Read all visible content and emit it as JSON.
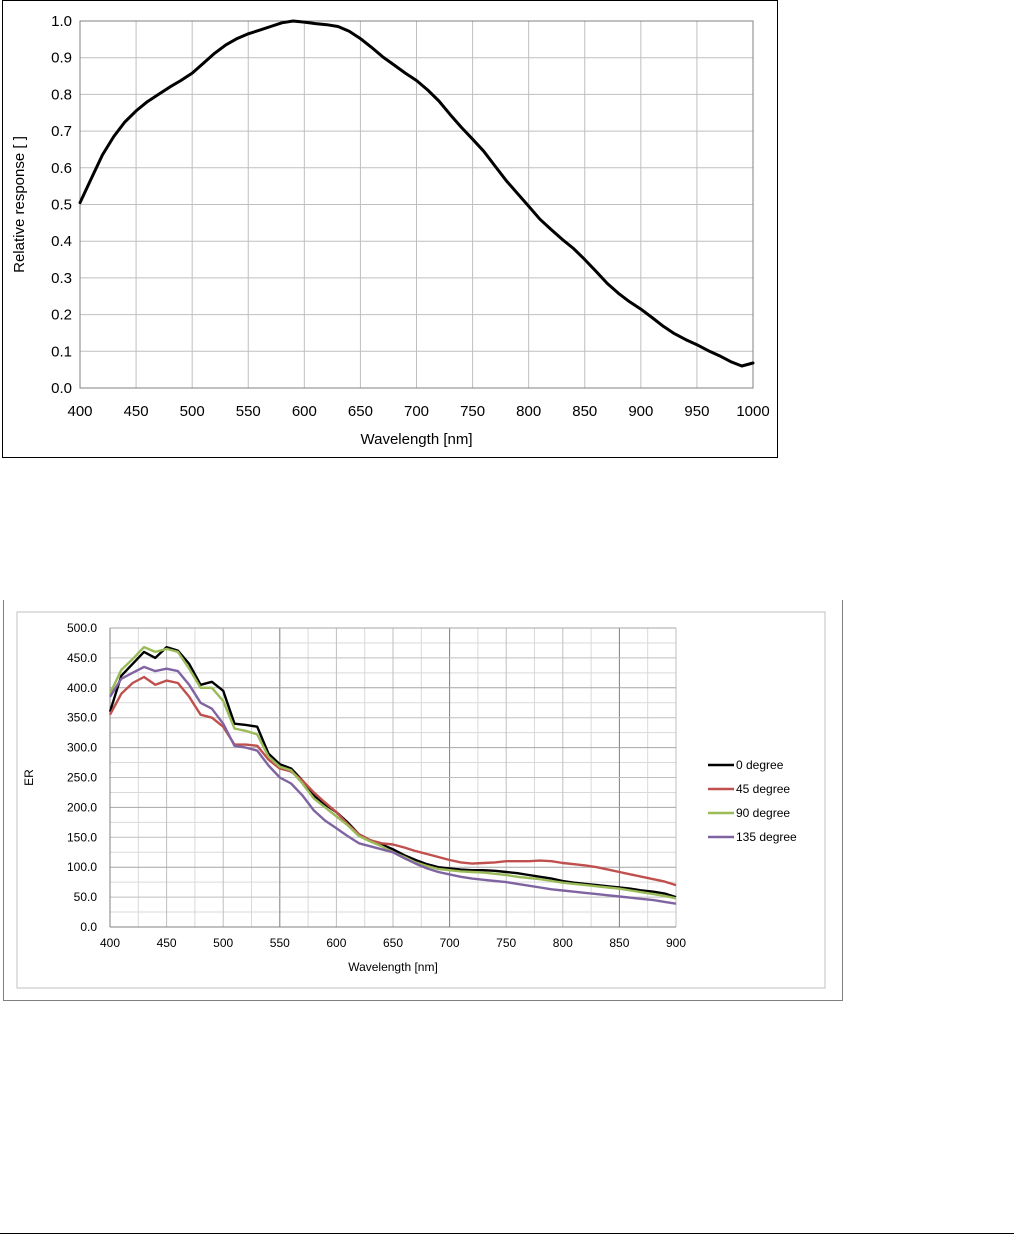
{
  "chart_data": [
    {
      "type": "line",
      "xlabel": "Wavelength [nm]",
      "ylabel": "Relative response [ ]",
      "xlim": [
        400,
        1000
      ],
      "ylim": [
        0.0,
        1.0
      ],
      "x_ticks": [
        "400",
        "450",
        "500",
        "550",
        "600",
        "650",
        "700",
        "750",
        "800",
        "850",
        "900",
        "950",
        "1000"
      ],
      "y_ticks": [
        "0.0",
        "0.1",
        "0.2",
        "0.3",
        "0.4",
        "0.5",
        "0.6",
        "0.7",
        "0.8",
        "0.9",
        "1.0"
      ],
      "grid": true,
      "legend": "none",
      "colors": {
        "line": "#000000",
        "grid": "#bfbfbf"
      },
      "series": [
        {
          "color": "#000000",
          "x": [
            400,
            410,
            420,
            430,
            440,
            450,
            460,
            470,
            480,
            490,
            500,
            510,
            520,
            530,
            540,
            550,
            560,
            570,
            580,
            590,
            600,
            610,
            620,
            630,
            640,
            650,
            660,
            670,
            680,
            690,
            700,
            710,
            720,
            730,
            740,
            750,
            760,
            770,
            780,
            790,
            800,
            810,
            820,
            830,
            840,
            850,
            860,
            870,
            880,
            890,
            900,
            910,
            920,
            930,
            940,
            950,
            960,
            970,
            980,
            990,
            1000
          ],
          "values": [
            0.505,
            0.57,
            0.635,
            0.685,
            0.725,
            0.755,
            0.78,
            0.8,
            0.82,
            0.838,
            0.858,
            0.885,
            0.912,
            0.935,
            0.952,
            0.965,
            0.975,
            0.985,
            0.995,
            1.0,
            0.997,
            0.993,
            0.99,
            0.985,
            0.972,
            0.952,
            0.928,
            0.902,
            0.88,
            0.858,
            0.838,
            0.812,
            0.782,
            0.745,
            0.71,
            0.678,
            0.645,
            0.605,
            0.565,
            0.53,
            0.495,
            0.46,
            0.432,
            0.405,
            0.38,
            0.35,
            0.318,
            0.285,
            0.258,
            0.235,
            0.215,
            0.192,
            0.168,
            0.148,
            0.132,
            0.118,
            0.102,
            0.088,
            0.072,
            0.06,
            0.068
          ]
        }
      ]
    },
    {
      "type": "line",
      "xlabel": "Wavelength [nm]",
      "ylabel": "ER",
      "xlim": [
        400,
        900
      ],
      "ylim": [
        0.0,
        500.0
      ],
      "x_ticks": [
        "400",
        "450",
        "500",
        "550",
        "600",
        "650",
        "700",
        "750",
        "800",
        "850",
        "900"
      ],
      "y_ticks": [
        "0.0",
        "50.0",
        "100.0",
        "150.0",
        "200.0",
        "250.0",
        "300.0",
        "350.0",
        "400.0",
        "450.0",
        "500.0"
      ],
      "grid": true,
      "legend": "right",
      "colors": {
        "grid": "#7f7f7f",
        "minor_grid": "#d9d9d9"
      },
      "x": [
        400,
        410,
        420,
        430,
        440,
        450,
        460,
        470,
        480,
        490,
        500,
        510,
        520,
        530,
        540,
        550,
        560,
        570,
        580,
        590,
        600,
        610,
        620,
        630,
        640,
        650,
        660,
        670,
        680,
        690,
        700,
        710,
        720,
        730,
        740,
        750,
        760,
        770,
        780,
        790,
        800,
        810,
        820,
        830,
        840,
        850,
        860,
        870,
        880,
        890,
        900
      ],
      "series": [
        {
          "name": "0 degree",
          "color": "#000000",
          "values": [
            360,
            420,
            440,
            460,
            450,
            468,
            462,
            440,
            405,
            410,
            395,
            340,
            338,
            335,
            290,
            272,
            265,
            245,
            220,
            205,
            192,
            175,
            155,
            145,
            138,
            130,
            120,
            112,
            105,
            100,
            98,
            96,
            95,
            95,
            94,
            92,
            90,
            87,
            84,
            81,
            77,
            74,
            72,
            70,
            68,
            66,
            64,
            61,
            59,
            56,
            50
          ]
        },
        {
          "name": "45 degree",
          "color": "#c0504d",
          "values": [
            355,
            390,
            408,
            418,
            405,
            412,
            408,
            385,
            355,
            350,
            335,
            305,
            305,
            303,
            280,
            265,
            260,
            245,
            225,
            208,
            192,
            172,
            155,
            145,
            140,
            138,
            133,
            127,
            122,
            117,
            112,
            108,
            106,
            107,
            108,
            110,
            110,
            110,
            111,
            110,
            107,
            105,
            103,
            100,
            96,
            92,
            88,
            84,
            80,
            76,
            70
          ]
        },
        {
          "name": "90 degree",
          "color": "#9bbb59",
          "values": [
            390,
            430,
            448,
            468,
            460,
            465,
            460,
            432,
            400,
            400,
            378,
            332,
            328,
            322,
            285,
            268,
            262,
            240,
            215,
            200,
            185,
            170,
            152,
            143,
            135,
            125,
            117,
            108,
            102,
            97,
            95,
            93,
            92,
            91,
            89,
            87,
            84,
            82,
            80,
            77,
            74,
            72,
            70,
            68,
            66,
            64,
            61,
            58,
            55,
            52,
            48
          ]
        },
        {
          "name": "135 degree",
          "color": "#8064a2",
          "values": [
            385,
            415,
            425,
            435,
            428,
            432,
            428,
            405,
            375,
            365,
            340,
            303,
            300,
            295,
            270,
            250,
            240,
            220,
            195,
            178,
            165,
            152,
            140,
            135,
            130,
            125,
            115,
            106,
            98,
            92,
            88,
            84,
            81,
            79,
            77,
            75,
            72,
            69,
            66,
            63,
            61,
            59,
            57,
            55,
            53,
            51,
            49,
            47,
            45,
            42,
            39
          ]
        }
      ]
    }
  ]
}
